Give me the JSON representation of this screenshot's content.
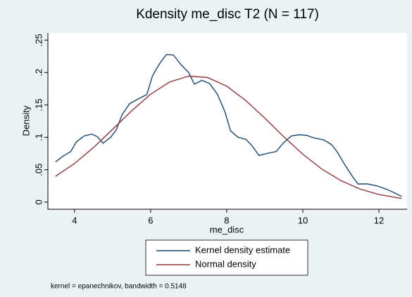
{
  "chart_data": {
    "type": "line",
    "title": "Kdensity me_disc T2 (N = 117)",
    "x_label": "me_disc",
    "y_label": "Density",
    "note": "kernel = epanechnikov, bandwidth = 0.5148",
    "xlim": [
      3.3,
      12.74
    ],
    "ylim": [
      -0.011,
      0.261
    ],
    "xticks": [
      4,
      6,
      8,
      10,
      12
    ],
    "yticks": [
      0,
      {
        "value": 0.05,
        "label": ".05"
      },
      {
        "value": 0.1,
        "label": ".1"
      },
      {
        "value": 0.15,
        "label": ".15"
      },
      {
        "value": 0.2,
        "label": ".2"
      },
      {
        "value": 0.25,
        "label": ".25"
      }
    ],
    "grid": false,
    "legend": "bottom",
    "series": [
      {
        "name": "Kernel density estimate",
        "color": "#1a476f",
        "x": [
          3.5,
          3.7,
          3.9,
          4.05,
          4.25,
          4.45,
          4.6,
          4.75,
          4.95,
          5.1,
          5.25,
          5.45,
          5.7,
          5.9,
          6.05,
          6.25,
          6.42,
          6.6,
          6.8,
          7.0,
          7.15,
          7.35,
          7.55,
          7.75,
          7.95,
          8.1,
          8.3,
          8.5,
          8.65,
          8.85,
          9.05,
          9.3,
          9.5,
          9.7,
          9.9,
          10.1,
          10.3,
          10.55,
          10.75,
          10.9,
          11.1,
          11.3,
          11.45,
          11.7,
          11.95,
          12.15,
          12.35,
          12.55,
          12.6
        ],
        "values": [
          0.062,
          0.071,
          0.078,
          0.093,
          0.102,
          0.105,
          0.101,
          0.091,
          0.1,
          0.112,
          0.135,
          0.152,
          0.16,
          0.166,
          0.195,
          0.215,
          0.228,
          0.227,
          0.212,
          0.2,
          0.182,
          0.188,
          0.183,
          0.167,
          0.14,
          0.11,
          0.1,
          0.097,
          0.088,
          0.072,
          0.075,
          0.078,
          0.092,
          0.102,
          0.104,
          0.103,
          0.099,
          0.096,
          0.089,
          0.078,
          0.058,
          0.04,
          0.028,
          0.028,
          0.025,
          0.021,
          0.016,
          0.01,
          0.009
        ]
      },
      {
        "name": "Normal density",
        "color": "#90353b",
        "x": [
          3.5,
          4,
          4.5,
          5,
          5.5,
          6,
          6.5,
          7,
          7.5,
          8,
          8.5,
          9,
          9.5,
          10,
          10.5,
          11,
          11.5,
          12,
          12.6
        ],
        "values": [
          0.0397,
          0.0596,
          0.0842,
          0.1122,
          0.1408,
          0.1665,
          0.1854,
          0.1945,
          0.1922,
          0.1789,
          0.1568,
          0.1297,
          0.1009,
          0.0739,
          0.051,
          0.0332,
          0.0203,
          0.0117,
          0.0056
        ]
      }
    ]
  }
}
